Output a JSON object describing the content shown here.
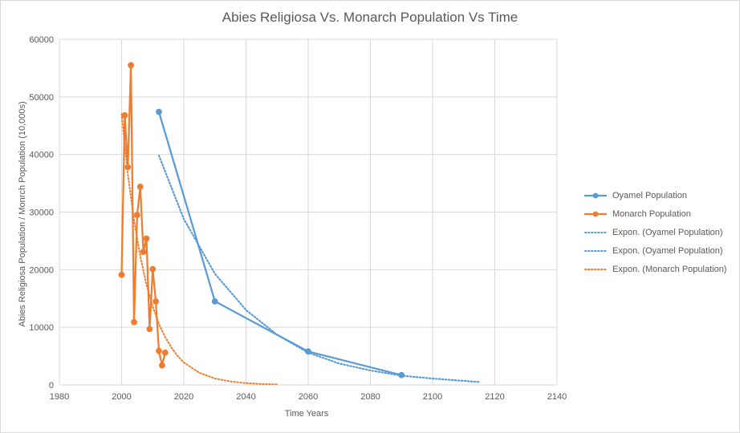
{
  "chart_data": {
    "type": "line",
    "title": "Abies Religiosa Vs. Monarch Population Vs Time",
    "xlabel": "Time Years",
    "ylabel": "Abies Religiosa Population / Monrch Population (10,000s)",
    "xlim": [
      1980,
      2140
    ],
    "ylim": [
      0,
      60000
    ],
    "x_ticks": [
      1980,
      2000,
      2020,
      2040,
      2060,
      2080,
      2100,
      2120,
      2140
    ],
    "y_ticks": [
      0,
      10000,
      20000,
      30000,
      40000,
      50000,
      60000
    ],
    "grid": true,
    "legend_position": "right",
    "colors": {
      "oyamel": "#5b9bd5",
      "monarch": "#ed7d31",
      "grid": "#d9d9d9",
      "text": "#595959"
    },
    "series": [
      {
        "name": "Oyamel Population",
        "style": "line-marker",
        "color": "#5b9bd5",
        "x": [
          2012,
          2030,
          2060,
          2090
        ],
        "y": [
          47400,
          14500,
          5800,
          1700
        ]
      },
      {
        "name": "Monarch Population",
        "style": "line-marker",
        "color": "#ed7d31",
        "x": [
          2000,
          2001,
          2002,
          2003,
          2004,
          2005,
          2006,
          2007,
          2008,
          2009,
          2010,
          2011,
          2012,
          2013,
          2014
        ],
        "y": [
          19100,
          46800,
          37800,
          55500,
          10900,
          29500,
          34400,
          23100,
          25400,
          9700,
          20100,
          14500,
          5900,
          3400,
          5600
        ]
      },
      {
        "name": "Expon. (Oyamel Population)",
        "style": "dotted-trend",
        "color": "#5b9bd5",
        "x": [
          2012,
          2020,
          2030,
          2040,
          2050,
          2060,
          2070,
          2080,
          2090,
          2100,
          2115
        ],
        "y": [
          39800,
          28800,
          19300,
          13000,
          8700,
          5600,
          3700,
          2500,
          1600,
          1100,
          500
        ]
      },
      {
        "name": "Expon. (Oyamel Population)",
        "style": "dotted-trend",
        "color": "#5b9bd5",
        "x": [
          2012,
          2020,
          2030,
          2040,
          2050,
          2060,
          2070,
          2080,
          2090,
          2100,
          2115
        ],
        "y": [
          39800,
          28800,
          19300,
          13000,
          8700,
          5600,
          3700,
          2500,
          1600,
          1100,
          500
        ]
      },
      {
        "name": "Expon. (Monarch Population)",
        "style": "dotted-trend",
        "color": "#ed7d31",
        "x": [
          2000,
          2002,
          2004,
          2006,
          2008,
          2010,
          2012,
          2014,
          2016,
          2018,
          2020,
          2025,
          2030,
          2035,
          2040,
          2045,
          2050
        ],
        "y": [
          47000,
          36600,
          28600,
          22300,
          17400,
          13600,
          10600,
          8300,
          6500,
          5000,
          3900,
          2100,
          1100,
          600,
          300,
          150,
          80
        ]
      }
    ]
  }
}
